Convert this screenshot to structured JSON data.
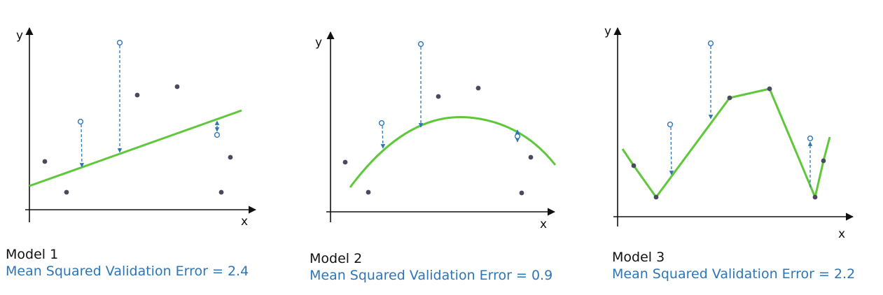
{
  "colors": {
    "axis": "#111111",
    "fit_curve": "#5ec83a",
    "data_point": "#4a4a5e",
    "validation": "#2e75b6",
    "caption_error": "#2e75b6"
  },
  "panels": [
    {
      "title": "Model 1",
      "error_text": "Mean Squared Validation Error = 2.4",
      "x_label": "x",
      "y_label": "y",
      "fit_type": "linear"
    },
    {
      "title": "Model 2",
      "error_text": "Mean Squared Validation Error = 0.9",
      "x_label": "x",
      "y_label": "y",
      "fit_type": "quadratic"
    },
    {
      "title": "Model 3",
      "error_text": "Mean Squared Validation Error = 2.2",
      "x_label": "x",
      "y_label": "y",
      "fit_type": "piecewise-linear"
    }
  ]
}
